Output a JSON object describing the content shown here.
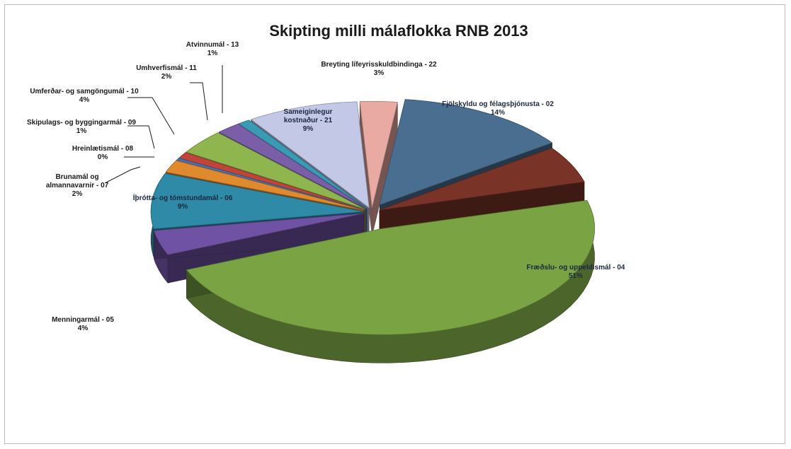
{
  "chart_data": {
    "type": "pie",
    "title": "Skipting milli málaflokka RNB 2013",
    "slices": [
      {
        "label": "Fjölskyldu og félagsþjónusta - 02",
        "value": 14,
        "pct": "14%",
        "color": "#4a6e8f"
      },
      {
        "label": "",
        "value": 6,
        "pct": "",
        "color": "#7a3327"
      },
      {
        "label": "Fræðslu- og uppeldismál - 04",
        "value": 51,
        "pct": "51%",
        "color": "#7aa343"
      },
      {
        "label": "Menningarmál - 05",
        "value": 4,
        "pct": "4%",
        "color": "#6f52a3"
      },
      {
        "label": "Íþrótta- og tómstundamál - 06",
        "value": 9,
        "pct": "9%",
        "color": "#2e8aa6"
      },
      {
        "label": "Brunamál og almannavarnir - 07",
        "value": 2,
        "pct": "2%",
        "color": "#e08a30"
      },
      {
        "label": "Hreinlætismál - 08",
        "value": 0.4,
        "pct": "0%",
        "color": "#4b6fa6"
      },
      {
        "label": "Skipulags- og byggingarmál - 09",
        "value": 1,
        "pct": "1%",
        "color": "#c0443a"
      },
      {
        "label": "Umferðar- og samgöngumál - 10",
        "value": 4,
        "pct": "4%",
        "color": "#8fb54e"
      },
      {
        "label": "Umhverfismál - 11",
        "value": 2,
        "pct": "2%",
        "color": "#7b5ea8"
      },
      {
        "label": "Atvinnumál - 13",
        "value": 1,
        "pct": "1%",
        "color": "#3a9bb5"
      },
      {
        "label": "Sameiginlegur kostnaður - 21",
        "value": 9,
        "pct": "9%",
        "color": "#c3c8e6"
      },
      {
        "label": "Breyting lífeyrisskuldbindinga - 22",
        "value": 3,
        "pct": "3%",
        "color": "#e8aaa3"
      }
    ]
  }
}
